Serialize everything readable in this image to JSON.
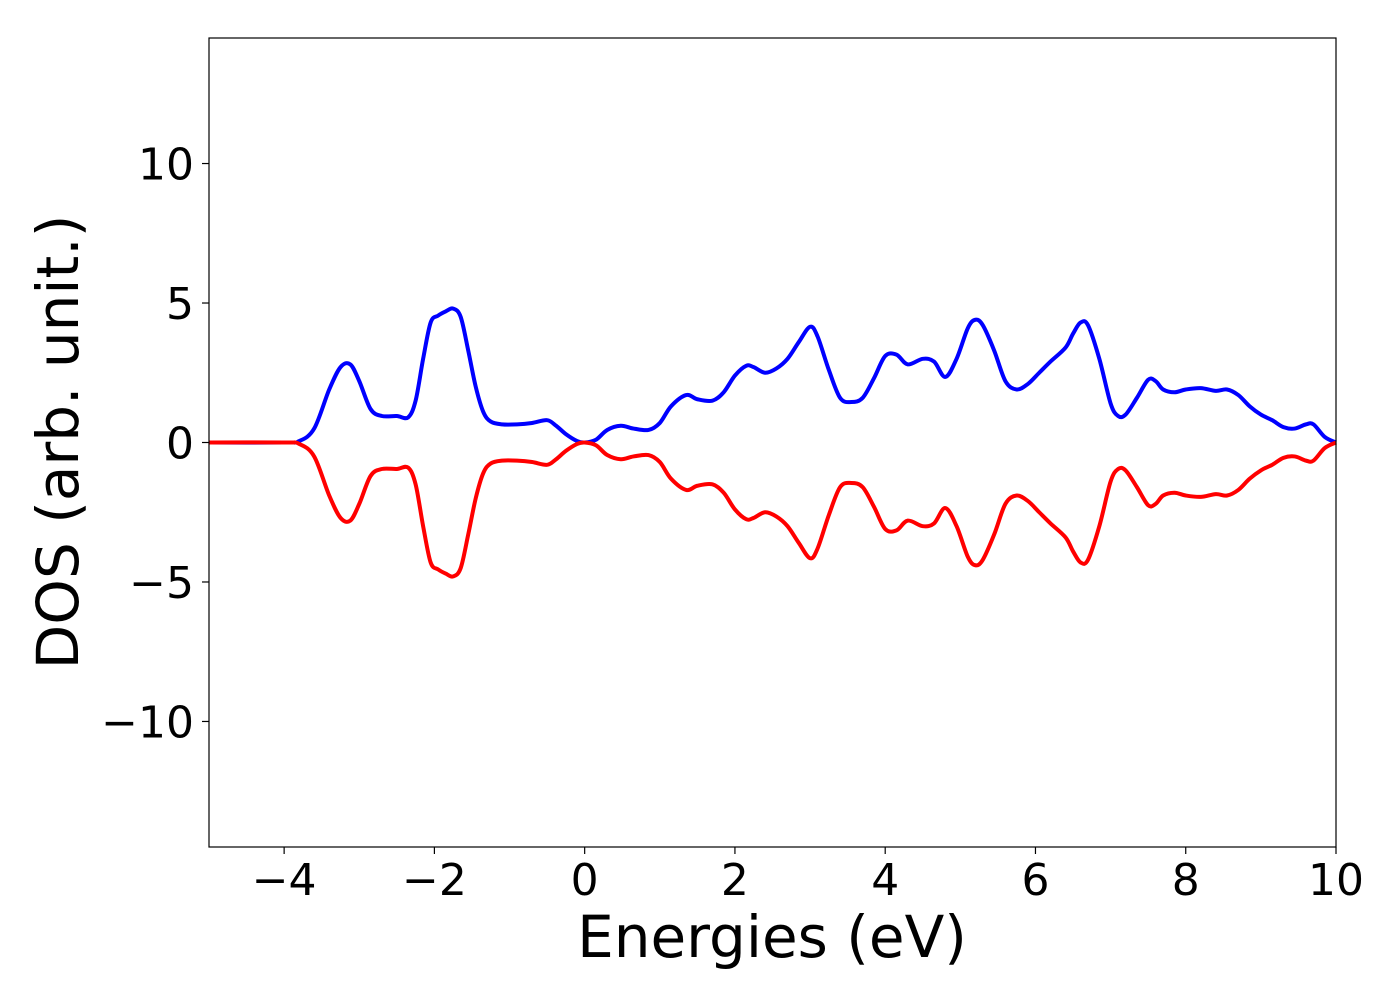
{
  "chart_data": {
    "type": "line",
    "title": "",
    "xlabel": "Energies (eV)",
    "ylabel": "DOS (arb. unit.)",
    "xlim": [
      -5,
      10
    ],
    "ylim": [
      -14.5,
      14.5
    ],
    "xticks": [
      -4,
      -2,
      0,
      2,
      4,
      6,
      8,
      10
    ],
    "xtick_labels": [
      "−4",
      "−2",
      "0",
      "2",
      "4",
      "6",
      "8",
      "10"
    ],
    "yticks": [
      -10,
      -5,
      0,
      5,
      10
    ],
    "ytick_labels": [
      "−10",
      "−5",
      "0",
      "5",
      "10"
    ],
    "grid": false,
    "legend": "none",
    "series": [
      {
        "color": "#0000ff",
        "x": [
          -5,
          -4,
          -3.8,
          -3.6,
          -3.4,
          -3.25,
          -3.12,
          -3.0,
          -2.85,
          -2.7,
          -2.5,
          -2.35,
          -2.25,
          -2.15,
          -2.05,
          -1.95,
          -1.85,
          -1.75,
          -1.65,
          -1.55,
          -1.45,
          -1.35,
          -1.25,
          -1.1,
          -0.9,
          -0.7,
          -0.5,
          -0.38,
          -0.25,
          -0.1,
          0,
          0.15,
          0.3,
          0.48,
          0.65,
          0.85,
          1.0,
          1.15,
          1.35,
          1.5,
          1.7,
          1.85,
          2.0,
          2.15,
          2.25,
          2.4,
          2.55,
          2.7,
          2.85,
          3.0,
          3.1,
          3.25,
          3.4,
          3.55,
          3.7,
          3.85,
          4.0,
          4.15,
          4.3,
          4.5,
          4.65,
          4.8,
          4.95,
          5.1,
          5.2,
          5.3,
          5.45,
          5.6,
          5.75,
          5.9,
          6.05,
          6.2,
          6.4,
          6.5,
          6.6,
          6.7,
          6.85,
          7.0,
          7.1,
          7.2,
          7.35,
          7.5,
          7.6,
          7.7,
          7.85,
          8.0,
          8.2,
          8.4,
          8.55,
          8.7,
          8.85,
          9.0,
          9.15,
          9.3,
          9.45,
          9.6,
          9.7,
          9.85,
          10.0
        ],
        "y": [
          0,
          0,
          0.05,
          0.5,
          1.9,
          2.7,
          2.8,
          2.2,
          1.2,
          0.95,
          0.95,
          0.9,
          1.5,
          3.0,
          4.3,
          4.55,
          4.7,
          4.8,
          4.5,
          3.3,
          2.0,
          1.1,
          0.75,
          0.65,
          0.65,
          0.7,
          0.8,
          0.6,
          0.3,
          0.05,
          0.0,
          0.1,
          0.45,
          0.6,
          0.5,
          0.45,
          0.7,
          1.3,
          1.7,
          1.55,
          1.5,
          1.8,
          2.4,
          2.75,
          2.7,
          2.5,
          2.65,
          3.0,
          3.6,
          4.15,
          3.8,
          2.6,
          1.6,
          1.45,
          1.6,
          2.3,
          3.1,
          3.15,
          2.8,
          3.0,
          2.9,
          2.35,
          3.0,
          4.1,
          4.4,
          4.2,
          3.3,
          2.2,
          1.9,
          2.1,
          2.5,
          2.9,
          3.4,
          3.9,
          4.3,
          4.2,
          3.0,
          1.4,
          0.95,
          1.0,
          1.6,
          2.25,
          2.2,
          1.9,
          1.8,
          1.9,
          1.95,
          1.85,
          1.9,
          1.7,
          1.3,
          1.0,
          0.8,
          0.55,
          0.5,
          0.65,
          0.65,
          0.2,
          0.0
        ]
      },
      {
        "color": "#ff0000",
        "x": [
          -5,
          -4,
          -3.8,
          -3.6,
          -3.4,
          -3.25,
          -3.12,
          -3.0,
          -2.85,
          -2.7,
          -2.5,
          -2.35,
          -2.25,
          -2.15,
          -2.05,
          -1.95,
          -1.85,
          -1.75,
          -1.65,
          -1.55,
          -1.45,
          -1.35,
          -1.25,
          -1.1,
          -0.9,
          -0.7,
          -0.5,
          -0.38,
          -0.25,
          -0.1,
          0,
          0.15,
          0.3,
          0.48,
          0.65,
          0.85,
          1.0,
          1.15,
          1.35,
          1.5,
          1.7,
          1.85,
          2.0,
          2.15,
          2.25,
          2.4,
          2.55,
          2.7,
          2.85,
          3.0,
          3.1,
          3.25,
          3.4,
          3.55,
          3.7,
          3.85,
          4.0,
          4.15,
          4.3,
          4.5,
          4.65,
          4.8,
          4.95,
          5.1,
          5.2,
          5.3,
          5.45,
          5.6,
          5.75,
          5.9,
          6.05,
          6.2,
          6.4,
          6.5,
          6.6,
          6.7,
          6.85,
          7.0,
          7.1,
          7.2,
          7.35,
          7.5,
          7.6,
          7.7,
          7.85,
          8.0,
          8.2,
          8.4,
          8.55,
          8.7,
          8.85,
          9.0,
          9.15,
          9.3,
          9.45,
          9.6,
          9.7,
          9.85,
          10.0
        ],
        "y": [
          0,
          0,
          -0.05,
          -0.5,
          -1.9,
          -2.7,
          -2.8,
          -2.2,
          -1.2,
          -0.95,
          -0.95,
          -0.9,
          -1.5,
          -3.0,
          -4.3,
          -4.55,
          -4.7,
          -4.8,
          -4.5,
          -3.3,
          -2.0,
          -1.1,
          -0.75,
          -0.65,
          -0.65,
          -0.7,
          -0.8,
          -0.6,
          -0.3,
          -0.05,
          0.0,
          -0.1,
          -0.45,
          -0.6,
          -0.5,
          -0.45,
          -0.7,
          -1.3,
          -1.7,
          -1.55,
          -1.5,
          -1.8,
          -2.4,
          -2.75,
          -2.7,
          -2.5,
          -2.65,
          -3.0,
          -3.6,
          -4.15,
          -3.8,
          -2.6,
          -1.6,
          -1.45,
          -1.6,
          -2.3,
          -3.1,
          -3.15,
          -2.8,
          -3.0,
          -2.9,
          -2.35,
          -3.0,
          -4.1,
          -4.4,
          -4.2,
          -3.3,
          -2.2,
          -1.9,
          -2.1,
          -2.5,
          -2.9,
          -3.4,
          -3.9,
          -4.3,
          -4.2,
          -3.0,
          -1.4,
          -0.95,
          -1.0,
          -1.6,
          -2.25,
          -2.2,
          -1.9,
          -1.8,
          -1.9,
          -1.95,
          -1.85,
          -1.9,
          -1.7,
          -1.3,
          -1.0,
          -0.8,
          -0.55,
          -0.5,
          -0.65,
          -0.65,
          -0.2,
          0.0
        ]
      }
    ]
  }
}
